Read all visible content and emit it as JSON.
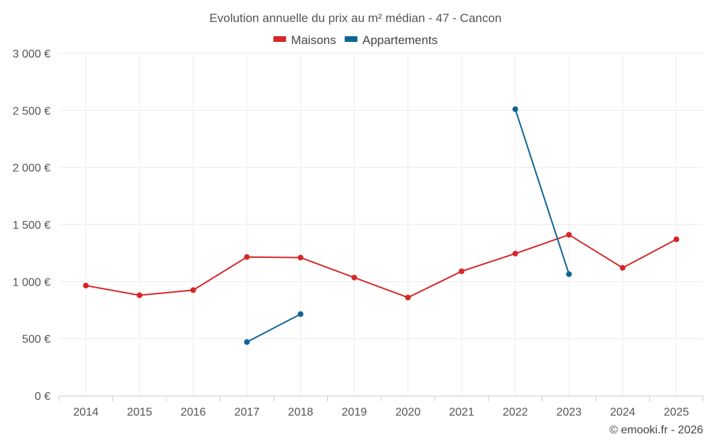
{
  "chart_data": {
    "type": "line",
    "title": "Evolution annuelle du prix au m² médian - 47 - Cancon",
    "categories": [
      "2014",
      "2015",
      "2016",
      "2017",
      "2018",
      "2019",
      "2020",
      "2021",
      "2022",
      "2023",
      "2024",
      "2025"
    ],
    "yticks": [
      0,
      500,
      1000,
      1500,
      2000,
      2500,
      3000
    ],
    "ytick_labels": [
      "0 €",
      "500 €",
      "1 000 €",
      "1 500 €",
      "2 000 €",
      "2 500 €",
      "3 000 €"
    ],
    "ylim": [
      0,
      3000
    ],
    "xlabel": "",
    "ylabel": "",
    "grid": true,
    "legend_position": "top-center",
    "series": [
      {
        "name": "Maisons",
        "color": "#d62728",
        "values": [
          965,
          880,
          925,
          1215,
          1210,
          1035,
          860,
          1090,
          1245,
          1410,
          1120,
          1370
        ]
      },
      {
        "name": "Appartements",
        "color": "#0e6497",
        "values": [
          null,
          null,
          null,
          470,
          715,
          null,
          null,
          null,
          2510,
          1065,
          null,
          null
        ]
      }
    ],
    "credit": "© emooki.fr - 2026"
  }
}
